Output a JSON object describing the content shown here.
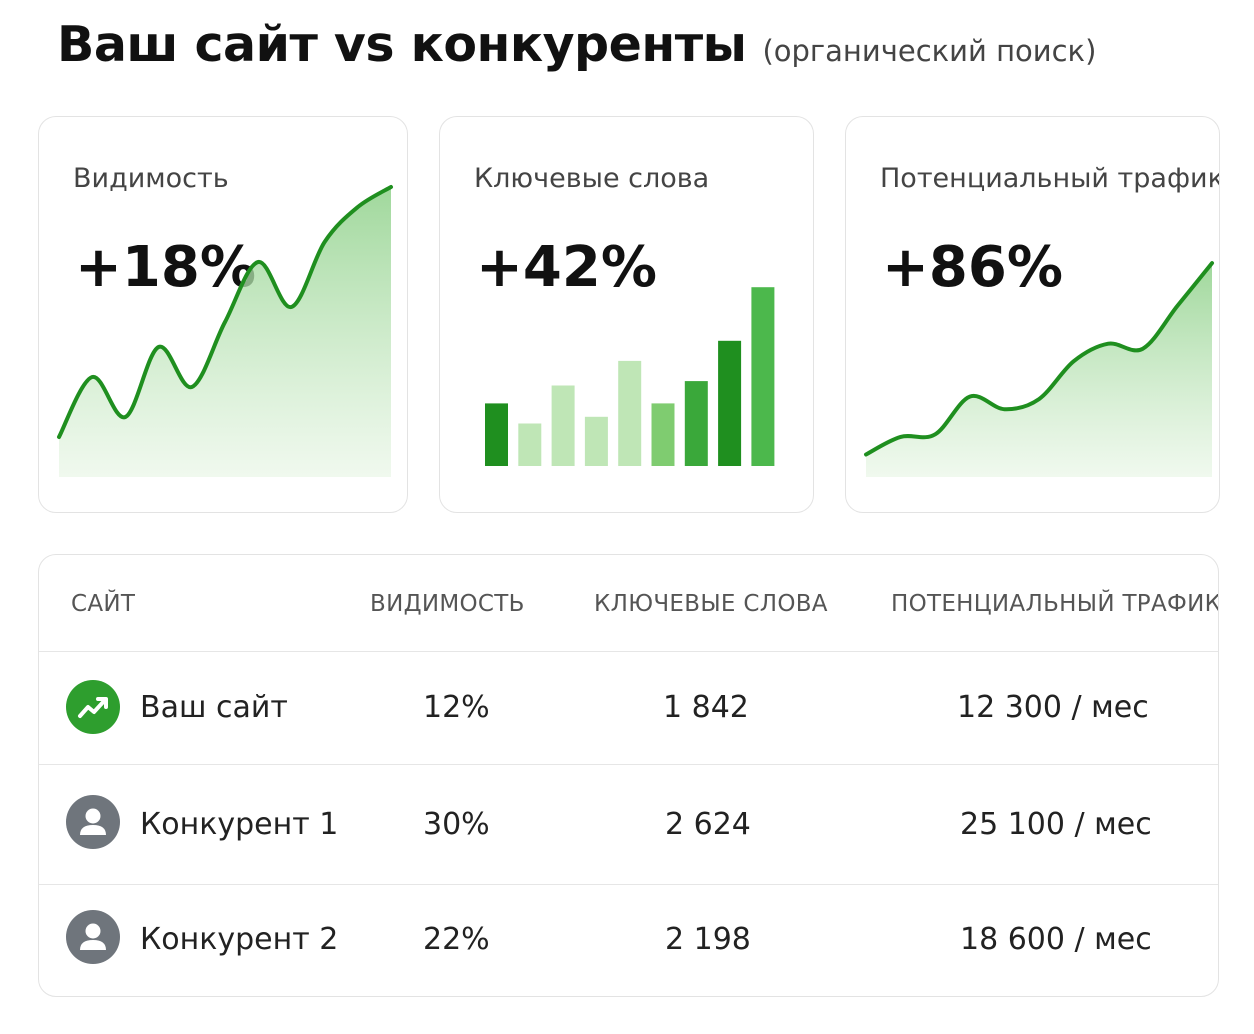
{
  "header": {
    "title": "Ваш сайт vs конкуренты",
    "subtitle": "(органический поиск)"
  },
  "colors": {
    "accent": "#2e9e2e",
    "accent_dark": "#1f8f1f",
    "accent_light": "#bfe6b6",
    "avatar_gray": "#6f757c"
  },
  "cards": [
    {
      "label": "Видимость",
      "value": "+18%",
      "chart_data": {
        "type": "area",
        "x": [
          0,
          1,
          2,
          3,
          4,
          5,
          6,
          7,
          8,
          9,
          10
        ],
        "values": [
          2,
          14,
          6,
          20,
          12,
          25,
          37,
          28,
          41,
          48,
          52
        ],
        "ylim": [
          0,
          60
        ]
      }
    },
    {
      "label": "Ключевые слова",
      "value": "+42%",
      "chart_data": {
        "type": "bar",
        "values": [
          28,
          19,
          36,
          22,
          47,
          28,
          38,
          56,
          80
        ],
        "colors": [
          "#1f8f1f",
          "#bfe6b6",
          "#bfe6b6",
          "#bfe6b6",
          "#bfe6b6",
          "#7fcc70",
          "#3aa83a",
          "#1f8f1f",
          "#4cb84c"
        ],
        "ylim": [
          0,
          85
        ]
      }
    },
    {
      "label": "Потенциальный трафик",
      "value": "+86%",
      "chart_data": {
        "type": "area",
        "x": [
          0,
          1,
          2,
          3,
          4,
          5,
          6,
          7,
          8,
          9,
          10
        ],
        "values": [
          1,
          8,
          9,
          24,
          19,
          23,
          38,
          45,
          43,
          60,
          77
        ],
        "ylim": [
          0,
          85
        ]
      }
    }
  ],
  "table": {
    "headers": [
      "САЙТ",
      "ВИДИМОСТЬ",
      "КЛЮЧЕВЫЕ СЛОВА",
      "ПОТЕНЦИАЛЬНЫЙ ТРАФИК"
    ],
    "rows": [
      {
        "icon": "trending-up-icon",
        "site": "Ваш сайт",
        "visibility": "12%",
        "keywords": "1 842",
        "traffic": "12 300 / мес"
      },
      {
        "icon": "user-icon",
        "site": "Конкурент 1",
        "visibility": "30%",
        "keywords": "2 624",
        "traffic": "25 100 / мес"
      },
      {
        "icon": "user-icon",
        "site": "Конкурент 2",
        "visibility": "22%",
        "keywords": "2 198",
        "traffic": "18 600 / мес"
      }
    ]
  }
}
